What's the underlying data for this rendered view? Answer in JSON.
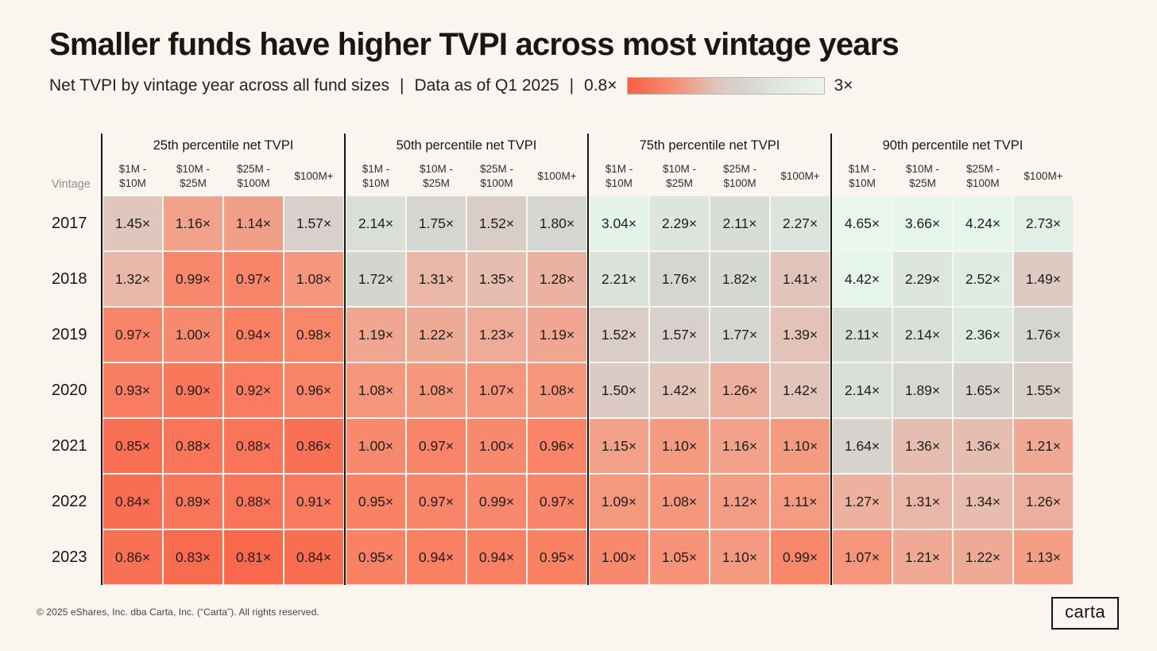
{
  "page": {
    "background": "#faf6ef"
  },
  "header": {
    "title": "Smaller funds have higher TVPI across most vintage years",
    "subtitle_text": "Net TVPI by vintage year across all fund sizes",
    "separator": "|",
    "data_as_of": "Data as of Q1 2025"
  },
  "legend": {
    "min_label": "0.8×",
    "max_label": "3×",
    "gradient_from": "#f85f41",
    "gradient_mid": "#d7d5d0",
    "gradient_to": "#e9f4ec"
  },
  "chart_data": {
    "type": "heatmap",
    "title": "Smaller funds have higher TVPI across most vintage years",
    "subtitle": "Net TVPI by vintage year across all fund sizes | Data as of Q1 2025",
    "row_header_label": "Vintage",
    "rows": [
      "2017",
      "2018",
      "2019",
      "2020",
      "2021",
      "2022",
      "2023"
    ],
    "value_suffix": "×",
    "fund_size_columns": [
      [
        "$1M -",
        "$10M"
      ],
      [
        "$10M -",
        "$25M"
      ],
      [
        "$25M -",
        "$100M"
      ],
      [
        "$100M+"
      ]
    ],
    "color_scale": {
      "domain_labels": [
        "0.8×",
        "3×"
      ],
      "stops": [
        [
          0.8,
          "#f9654a"
        ],
        [
          0.95,
          "#f98265"
        ],
        [
          1.1,
          "#f49a80"
        ],
        [
          1.25,
          "#eeae9b"
        ],
        [
          1.4,
          "#e2c3b9"
        ],
        [
          1.55,
          "#d8cfc9"
        ],
        [
          1.7,
          "#d5d5d0"
        ],
        [
          2.0,
          "#d6d9d3"
        ],
        [
          2.3,
          "#dce6de"
        ],
        [
          2.7,
          "#e1f0e6"
        ],
        [
          3.0,
          "#e4f4ea"
        ],
        [
          4.8,
          "#e7f7ed"
        ]
      ]
    },
    "groups": [
      {
        "label": "25th percentile net TVPI",
        "values": [
          [
            "1.45",
            "1.16",
            "1.14",
            "1.57"
          ],
          [
            "1.32",
            "0.99",
            "0.97",
            "1.08"
          ],
          [
            "0.97",
            "1.00",
            "0.94",
            "0.98"
          ],
          [
            "0.93",
            "0.90",
            "0.92",
            "0.96"
          ],
          [
            "0.85",
            "0.88",
            "0.88",
            "0.86"
          ],
          [
            "0.84",
            "0.89",
            "0.88",
            "0.91"
          ],
          [
            "0.86",
            "0.83",
            "0.81",
            "0.84"
          ]
        ]
      },
      {
        "label": "50th percentile net TVPI",
        "values": [
          [
            "2.14",
            "1.75",
            "1.52",
            "1.80"
          ],
          [
            "1.72",
            "1.31",
            "1.35",
            "1.28"
          ],
          [
            "1.19",
            "1.22",
            "1.23",
            "1.19"
          ],
          [
            "1.08",
            "1.08",
            "1.07",
            "1.08"
          ],
          [
            "1.00",
            "0.97",
            "1.00",
            "0.96"
          ],
          [
            "0.95",
            "0.97",
            "0.99",
            "0.97"
          ],
          [
            "0.95",
            "0.94",
            "0.94",
            "0.95"
          ]
        ]
      },
      {
        "label": "75th percentile net TVPI",
        "values": [
          [
            "3.04",
            "2.29",
            "2.11",
            "2.27"
          ],
          [
            "2.21",
            "1.76",
            "1.82",
            "1.41"
          ],
          [
            "1.52",
            "1.57",
            "1.77",
            "1.39"
          ],
          [
            "1.50",
            "1.42",
            "1.26",
            "1.42"
          ],
          [
            "1.15",
            "1.10",
            "1.16",
            "1.10"
          ],
          [
            "1.09",
            "1.08",
            "1.12",
            "1.11"
          ],
          [
            "1.00",
            "1.05",
            "1.10",
            "0.99"
          ]
        ]
      },
      {
        "label": "90th percentile net TVPI",
        "values": [
          [
            "4.65",
            "3.66",
            "4.24",
            "2.73"
          ],
          [
            "4.42",
            "2.29",
            "2.52",
            "1.49"
          ],
          [
            "2.11",
            "2.14",
            "2.36",
            "1.76"
          ],
          [
            "2.14",
            "1.89",
            "1.65",
            "1.55"
          ],
          [
            "1.64",
            "1.36",
            "1.36",
            "1.21"
          ],
          [
            "1.27",
            "1.31",
            "1.34",
            "1.26"
          ],
          [
            "1.07",
            "1.21",
            "1.22",
            "1.13"
          ]
        ]
      }
    ]
  },
  "footer": {
    "copyright": "© 2025 eShares, Inc. dba Carta, Inc. (“Carta”). All rights reserved.",
    "logo_text": "carta"
  }
}
